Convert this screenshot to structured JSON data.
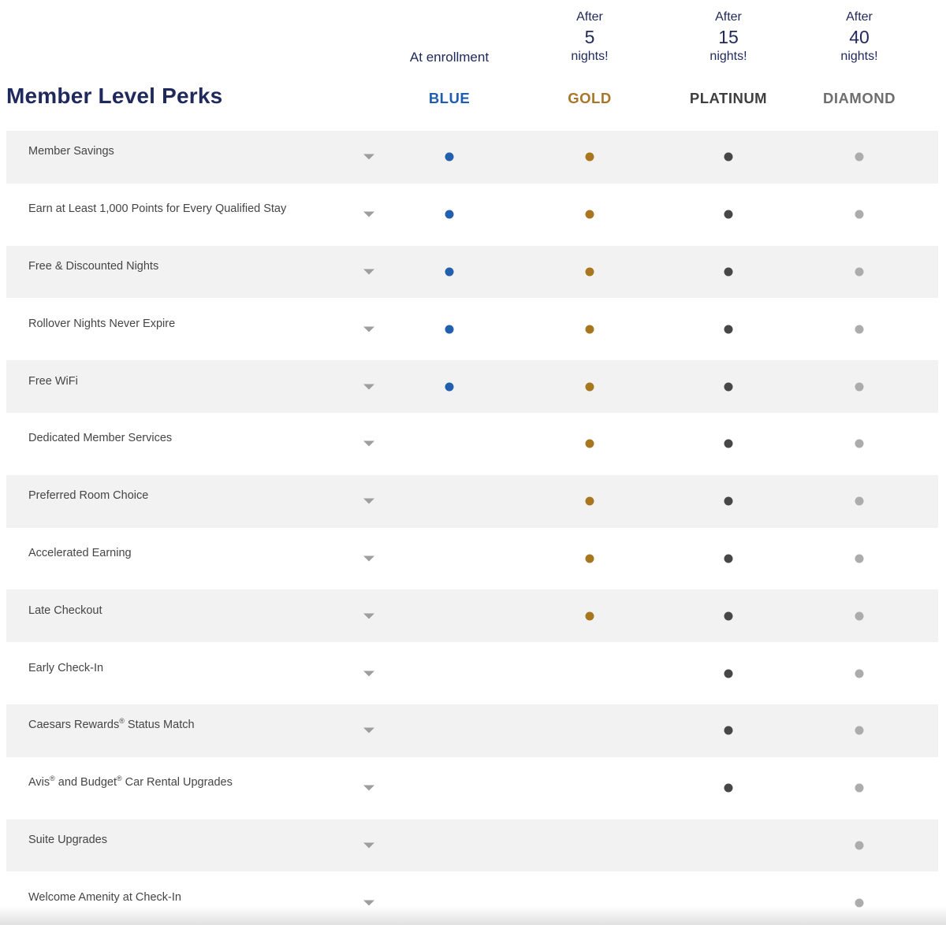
{
  "header": {
    "title": "Member Level Perks",
    "columns": [
      {
        "id": "blue",
        "label": "BLUE",
        "qualifier": "At enrollment",
        "text_color": "#1d5db2",
        "dot_color": "#2160ae"
      },
      {
        "id": "gold",
        "label": "GOLD",
        "qualifier_top": "After",
        "qualifier_count": "5",
        "qualifier_bottom": "nights!",
        "text_color": "#a8762a",
        "dot_color": "#a8761f"
      },
      {
        "id": "platinum",
        "label": "PLATINUM",
        "qualifier_top": "After",
        "qualifier_count": "15",
        "qualifier_bottom": "nights!",
        "text_color": "#3f3f3f",
        "dot_color": "#474747"
      },
      {
        "id": "diamond",
        "label": "DIAMOND",
        "qualifier_top": "After",
        "qualifier_count": "40",
        "qualifier_bottom": "nights!",
        "text_color": "#6e6e6e",
        "dot_color": "#acacac"
      }
    ]
  },
  "table": {
    "expand_icon": "chevron-down-icon",
    "availability_marker": "dot",
    "rows": [
      {
        "label": "Member Savings",
        "availability": {
          "blue": true,
          "gold": true,
          "platinum": true,
          "diamond": true
        }
      },
      {
        "label": "Earn at Least 1,000 Points for Every Qualified Stay",
        "availability": {
          "blue": true,
          "gold": true,
          "platinum": true,
          "diamond": true
        }
      },
      {
        "label": "Free & Discounted Nights",
        "availability": {
          "blue": true,
          "gold": true,
          "platinum": true,
          "diamond": true
        }
      },
      {
        "label": "Rollover Nights Never Expire",
        "availability": {
          "blue": true,
          "gold": true,
          "platinum": true,
          "diamond": true
        }
      },
      {
        "label": "Free WiFi",
        "availability": {
          "blue": true,
          "gold": true,
          "platinum": true,
          "diamond": true
        }
      },
      {
        "label": "Dedicated Member Services",
        "availability": {
          "blue": false,
          "gold": true,
          "platinum": true,
          "diamond": true
        }
      },
      {
        "label": "Preferred Room Choice",
        "availability": {
          "blue": false,
          "gold": true,
          "platinum": true,
          "diamond": true
        }
      },
      {
        "label": "Accelerated Earning",
        "availability": {
          "blue": false,
          "gold": true,
          "platinum": true,
          "diamond": true
        }
      },
      {
        "label": "Late Checkout",
        "availability": {
          "blue": false,
          "gold": true,
          "platinum": true,
          "diamond": true
        }
      },
      {
        "label": "Early Check-In",
        "availability": {
          "blue": false,
          "gold": false,
          "platinum": true,
          "diamond": true
        }
      },
      {
        "label": "Caesars Rewards® Status Match",
        "availability": {
          "blue": false,
          "gold": false,
          "platinum": true,
          "diamond": true
        }
      },
      {
        "label": "Avis® and Budget® Car Rental Upgrades",
        "availability": {
          "blue": false,
          "gold": false,
          "platinum": true,
          "diamond": true
        }
      },
      {
        "label": "Suite Upgrades",
        "availability": {
          "blue": false,
          "gold": false,
          "platinum": false,
          "diamond": true
        }
      },
      {
        "label": "Welcome Amenity at Check-In",
        "availability": {
          "blue": false,
          "gold": false,
          "platinum": false,
          "diamond": true
        }
      }
    ]
  },
  "colors": {
    "heading_navy": "#20295c",
    "row_shaded_bg": "#f2f2f2",
    "row_label_text": "#454545",
    "chevron_gray": "#9e9e9e"
  }
}
